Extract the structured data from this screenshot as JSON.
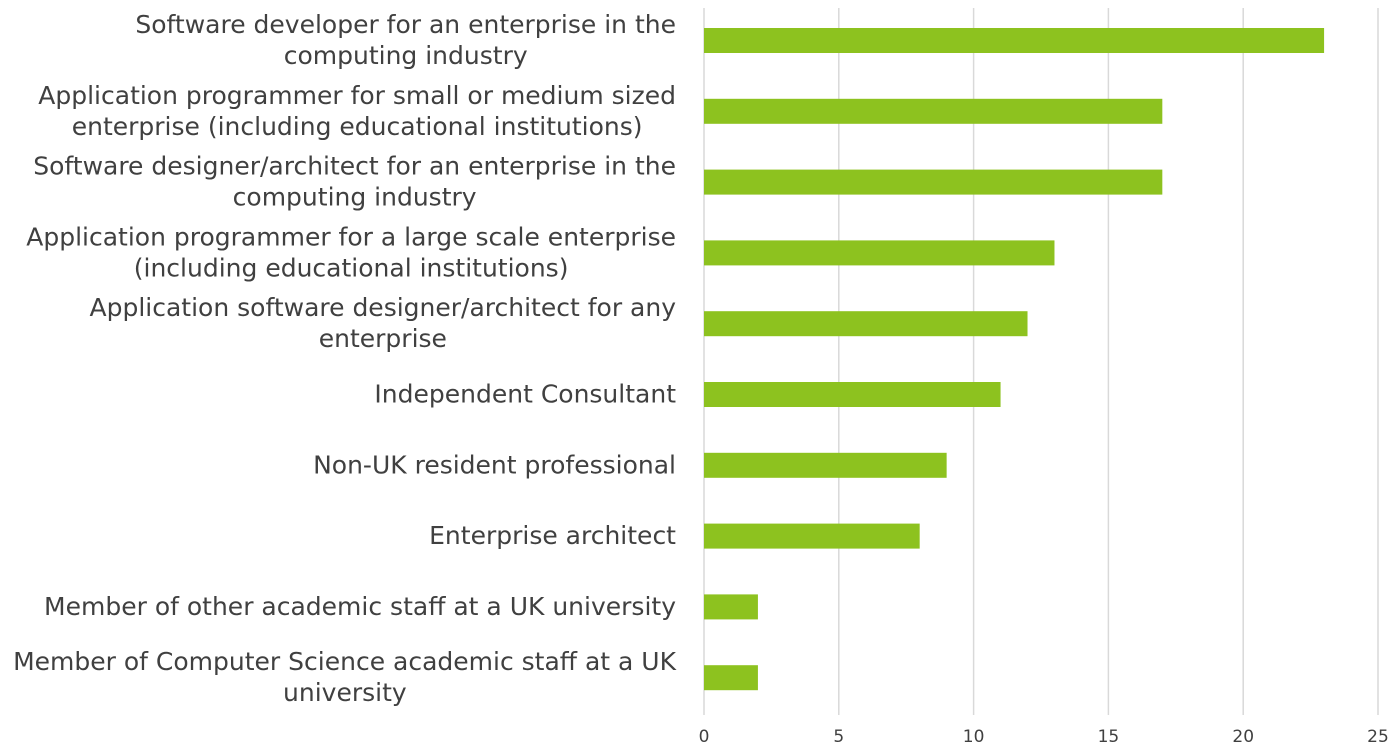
{
  "chart_data": {
    "type": "bar",
    "orientation": "horizontal",
    "title": "",
    "xlabel": "",
    "ylabel": "",
    "categories": [
      [
        "Software developer for an enterprise in the",
        "computing industry"
      ],
      [
        "Application programmer for small or medium sized",
        "enterprise (including educational institutions)"
      ],
      [
        "Software designer/architect for an enterprise in the",
        "computing industry"
      ],
      [
        "Application programmer for a large scale enterprise",
        "(including educational institutions)"
      ],
      [
        "Application software designer/architect for any",
        "enterprise"
      ],
      [
        "Independent Consultant"
      ],
      [
        "Non-UK resident professional"
      ],
      [
        "Enterprise architect"
      ],
      [
        "Member of other academic staff at a UK university"
      ],
      [
        "Member of Computer Science academic staff at a UK",
        "university"
      ]
    ],
    "values": [
      23,
      17,
      17,
      13,
      12,
      11,
      9,
      8,
      2,
      2
    ],
    "xlim": [
      0,
      25
    ],
    "ticks": [
      "0",
      "5",
      "10",
      "15",
      "20",
      "25"
    ],
    "grid": true,
    "legend": "none",
    "bar_color": "#8dc21f"
  }
}
